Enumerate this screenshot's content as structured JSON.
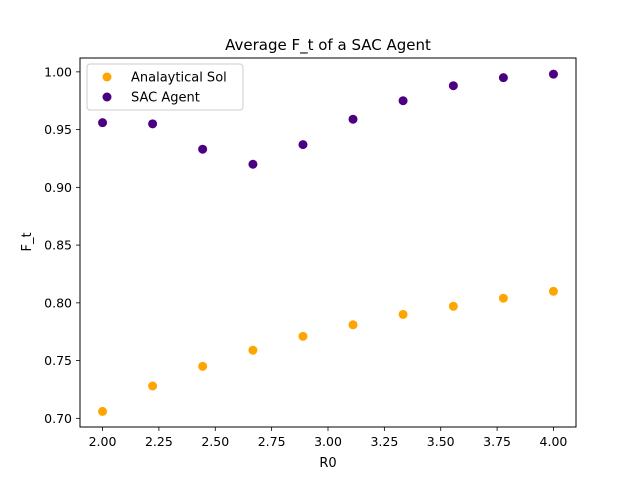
{
  "chart_data": {
    "type": "scatter",
    "title": "Average F_t of a SAC Agent",
    "xlabel": "R0",
    "ylabel": "F_t",
    "xlim": [
      1.9,
      4.1
    ],
    "ylim": [
      0.6925,
      1.012
    ],
    "xticks": [
      "2.00",
      "2.25",
      "2.50",
      "2.75",
      "3.00",
      "3.25",
      "3.50",
      "3.75",
      "4.00"
    ],
    "yticks": [
      "0.70",
      "0.75",
      "0.80",
      "0.85",
      "0.90",
      "0.95",
      "1.00"
    ],
    "grid": false,
    "legend_position": "upper-left",
    "series": [
      {
        "name": "Analaytical Sol",
        "color": "#ffa500",
        "x": [
          2.0,
          2.222,
          2.444,
          2.667,
          2.889,
          3.111,
          3.333,
          3.556,
          3.778,
          4.0
        ],
        "y": [
          0.706,
          0.728,
          0.745,
          0.759,
          0.771,
          0.781,
          0.79,
          0.797,
          0.804,
          0.81
        ]
      },
      {
        "name": "SAC Agent",
        "color": "#4b0082",
        "x": [
          2.0,
          2.222,
          2.444,
          2.667,
          2.889,
          3.111,
          3.333,
          3.556,
          3.778,
          4.0
        ],
        "y": [
          0.956,
          0.955,
          0.933,
          0.92,
          0.937,
          0.959,
          0.975,
          0.988,
          0.995,
          0.998
        ]
      }
    ]
  }
}
